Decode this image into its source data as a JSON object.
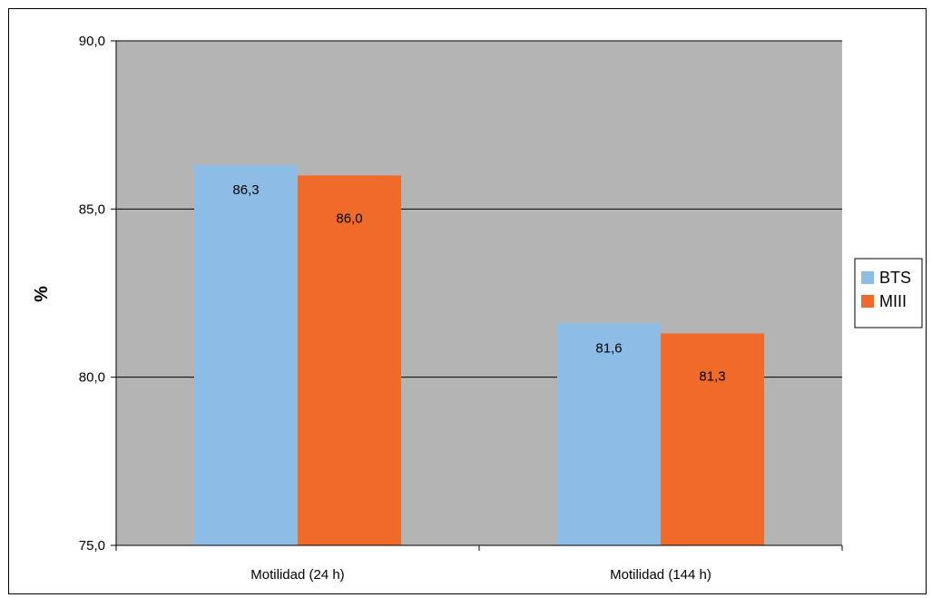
{
  "chart_data": {
    "type": "bar",
    "title": "",
    "xlabel": "",
    "ylabel": "%",
    "ylim": [
      75.0,
      90.0
    ],
    "y_ticks": [
      "75,0",
      "80,0",
      "85,0",
      "90,0"
    ],
    "y_tick_values": [
      75,
      80,
      85,
      90
    ],
    "categories": [
      "Motilidad (24 h)",
      "Motilidad (144 h)"
    ],
    "series": [
      {
        "name": "BTS",
        "values": [
          86.3,
          81.6
        ],
        "labels": [
          "86,3",
          "81,6"
        ],
        "color": "#8DBDE6"
      },
      {
        "name": "MIII",
        "values": [
          86.0,
          81.3
        ],
        "labels": [
          "86,0",
          "81,3"
        ],
        "color": "#F06A2A"
      }
    ],
    "grid": true,
    "plot_background": "#B4B4B4",
    "legend_position": "right"
  }
}
